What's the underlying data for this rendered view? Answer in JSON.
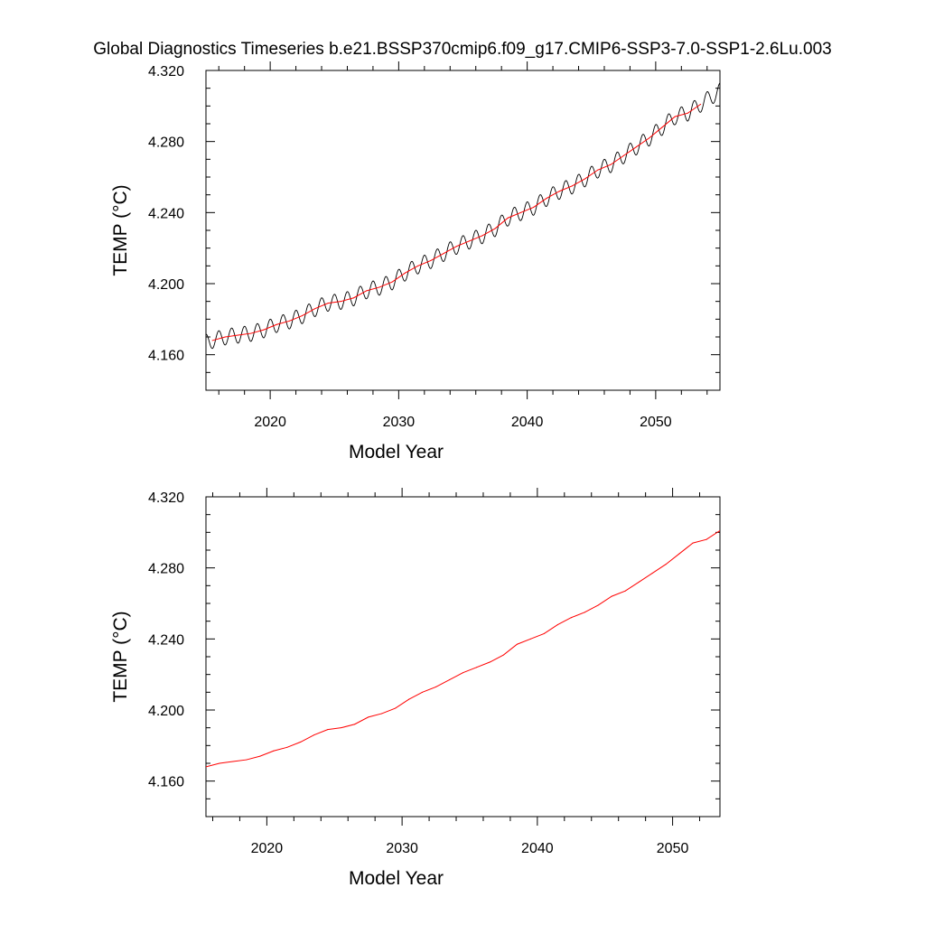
{
  "title": "Global Diagnostics Timeseries b.e21.BSSP370cmip6.f09_g17.CMIP6-SSP3-7.0-SSP1-2.6Lu.003",
  "chart_data": [
    {
      "type": "line",
      "xlabel": "Model Year",
      "ylabel": "TEMP (°C)",
      "xlim": [
        2015,
        2055
      ],
      "ylim": [
        4.14,
        4.32
      ],
      "xticks": [
        2020,
        2030,
        2040,
        2050
      ],
      "xtick_labels": [
        "2020",
        "2030",
        "2040",
        "2050"
      ],
      "yticks": [
        4.16,
        4.2,
        4.24,
        4.28,
        4.32
      ],
      "ytick_labels": [
        "4.160",
        "4.200",
        "4.240",
        "4.280",
        "4.320"
      ],
      "grid": false,
      "series": [
        {
          "color": "#000000",
          "style": "monthly seasonal cycle",
          "x_range": [
            2015,
            2055
          ],
          "cycles_per_year": 1,
          "amplitude": 0.0045
        },
        {
          "color": "#ff0000",
          "x": [
            2015.5,
            2016.5,
            2017.5,
            2018.5,
            2019.5,
            2020.5,
            2021.5,
            2022.5,
            2023.5,
            2024.5,
            2025.5,
            2026.5,
            2027.5,
            2028.5,
            2029.5,
            2030.5,
            2031.5,
            2032.5,
            2033.5,
            2034.5,
            2035.5,
            2036.5,
            2037.5,
            2038.5,
            2039.5,
            2040.5,
            2041.5,
            2042.5,
            2043.5,
            2044.5,
            2045.5,
            2046.5,
            2047.5,
            2048.5,
            2049.5,
            2050.5,
            2051.5,
            2052.5,
            2053.5
          ],
          "y": [
            4.168,
            4.17,
            4.171,
            4.172,
            4.174,
            4.177,
            4.179,
            4.182,
            4.186,
            4.189,
            4.19,
            4.192,
            4.196,
            4.198,
            4.201,
            4.206,
            4.21,
            4.213,
            4.217,
            4.221,
            4.224,
            4.227,
            4.231,
            4.237,
            4.24,
            4.243,
            4.248,
            4.252,
            4.255,
            4.259,
            4.264,
            4.267,
            4.272,
            4.277,
            4.282,
            4.288,
            4.294,
            4.296,
            4.301
          ]
        }
      ]
    },
    {
      "type": "line",
      "xlabel": "Model Year",
      "ylabel": "TEMP (°C)",
      "xlim": [
        2015.5,
        2053.5
      ],
      "ylim": [
        4.14,
        4.32
      ],
      "xticks": [
        2020,
        2030,
        2040,
        2050
      ],
      "xtick_labels": [
        "2020",
        "2030",
        "2040",
        "2050"
      ],
      "yticks": [
        4.16,
        4.2,
        4.24,
        4.28,
        4.32
      ],
      "ytick_labels": [
        "4.160",
        "4.200",
        "4.240",
        "4.280",
        "4.320"
      ],
      "grid": false,
      "series": [
        {
          "color": "#ff0000",
          "x": [
            2015.5,
            2016.5,
            2017.5,
            2018.5,
            2019.5,
            2020.5,
            2021.5,
            2022.5,
            2023.5,
            2024.5,
            2025.5,
            2026.5,
            2027.5,
            2028.5,
            2029.5,
            2030.5,
            2031.5,
            2032.5,
            2033.5,
            2034.5,
            2035.5,
            2036.5,
            2037.5,
            2038.5,
            2039.5,
            2040.5,
            2041.5,
            2042.5,
            2043.5,
            2044.5,
            2045.5,
            2046.5,
            2047.5,
            2048.5,
            2049.5,
            2050.5,
            2051.5,
            2052.5,
            2053.5
          ],
          "y": [
            4.168,
            4.17,
            4.171,
            4.172,
            4.174,
            4.177,
            4.179,
            4.182,
            4.186,
            4.189,
            4.19,
            4.192,
            4.196,
            4.198,
            4.201,
            4.206,
            4.21,
            4.213,
            4.217,
            4.221,
            4.224,
            4.227,
            4.231,
            4.237,
            4.24,
            4.243,
            4.248,
            4.252,
            4.255,
            4.259,
            4.264,
            4.267,
            4.272,
            4.277,
            4.282,
            4.288,
            4.294,
            4.296,
            4.301
          ]
        }
      ]
    }
  ]
}
